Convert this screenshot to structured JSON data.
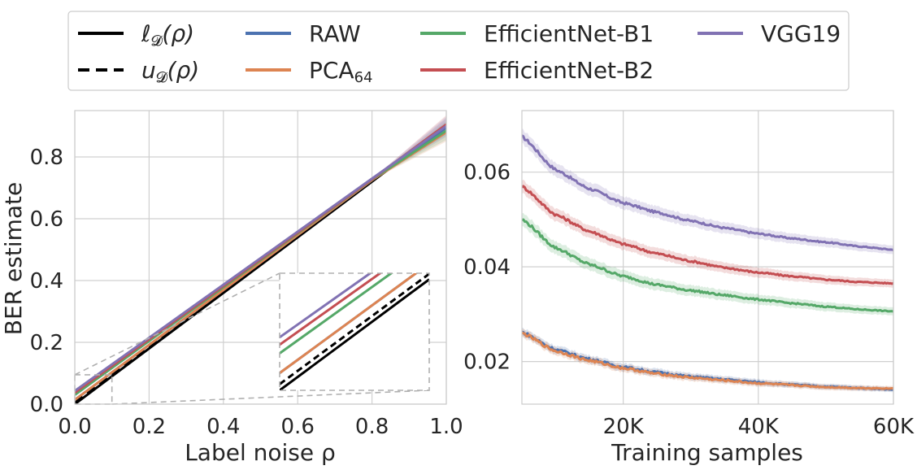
{
  "colors": {
    "raw": "#4c72b0",
    "pca": "#dd8452",
    "effb1": "#55a868",
    "effb2": "#c44e52",
    "vgg": "#8172b3",
    "lower": "#000000",
    "upper": "#000000",
    "grid": "#d0d0d0",
    "frame": "#cccccc",
    "inset_frame": "#b0b0b0"
  },
  "legend": {
    "placement": "top-center",
    "items": [
      {
        "label": "ℓ",
        "sub": "𝓓",
        "tail": "(ρ)",
        "style": "solid",
        "colorKey": "lower",
        "math": true
      },
      {
        "label": "RAW",
        "style": "solid",
        "colorKey": "raw"
      },
      {
        "label": "EfficientNet-B1",
        "style": "solid",
        "colorKey": "effb1"
      },
      {
        "label": "VGG19",
        "style": "solid",
        "colorKey": "vgg"
      },
      {
        "label": "u",
        "sub": "𝓓",
        "tail": "(ρ)",
        "style": "dashed",
        "colorKey": "upper",
        "math": true
      },
      {
        "label": "PCA",
        "sub": "64",
        "style": "solid",
        "colorKey": "pca"
      },
      {
        "label": "EfficientNet-B2",
        "style": "solid",
        "colorKey": "effb2"
      }
    ]
  },
  "chart_data": [
    {
      "type": "line",
      "title": "",
      "xlabel": "Label noise ρ",
      "ylabel": "BER estimate",
      "xlim": [
        0.0,
        1.0
      ],
      "ylim": [
        0.0,
        0.95
      ],
      "xticks": [
        0.0,
        0.2,
        0.4,
        0.6,
        0.8,
        1.0
      ],
      "xtick_labels": [
        "0.0",
        "0.2",
        "0.4",
        "0.6",
        "0.8",
        "1.0"
      ],
      "yticks": [
        0.0,
        0.2,
        0.4,
        0.6,
        0.8
      ],
      "ytick_labels": [
        "0.0",
        "0.2",
        "0.4",
        "0.6",
        "0.8"
      ],
      "grid": true,
      "series": [
        {
          "name": "lower bound ℓ𝓓(ρ)",
          "colorKey": "lower",
          "style": "solid",
          "x": [
            0.0,
            1.0
          ],
          "y": [
            0.0,
            0.9
          ]
        },
        {
          "name": "upper bound u𝓓(ρ)",
          "colorKey": "upper",
          "style": "dashed",
          "x": [
            0.0,
            1.0
          ],
          "y": [
            0.005,
            0.9
          ]
        },
        {
          "name": "RAW",
          "colorKey": "raw",
          "style": "solid",
          "x": [
            0.0,
            0.8,
            1.0
          ],
          "y": [
            0.014,
            0.725,
            0.895
          ]
        },
        {
          "name": "PCA64",
          "colorKey": "pca",
          "style": "solid",
          "x": [
            0.0,
            0.8,
            1.0
          ],
          "y": [
            0.014,
            0.725,
            0.88
          ]
        },
        {
          "name": "EfficientNet-B1",
          "colorKey": "effb1",
          "style": "solid",
          "x": [
            0.0,
            0.8,
            1.0
          ],
          "y": [
            0.03,
            0.727,
            0.885
          ]
        },
        {
          "name": "EfficientNet-B2",
          "colorKey": "effb2",
          "style": "solid",
          "x": [
            0.0,
            0.8,
            1.0
          ],
          "y": [
            0.037,
            0.728,
            0.905
          ]
        },
        {
          "name": "VGG19",
          "colorKey": "vgg",
          "style": "solid",
          "x": [
            0.0,
            0.8,
            1.0
          ],
          "y": [
            0.043,
            0.73,
            0.9
          ]
        }
      ],
      "inset": {
        "zoom_region_x": [
          0.0,
          0.1
        ],
        "zoom_region_y": [
          0.0,
          0.095
        ],
        "placement": "lower-right"
      }
    },
    {
      "type": "line",
      "title": "",
      "xlabel": "Training samples",
      "ylabel": "",
      "xlim": [
        5000,
        60000
      ],
      "ylim": [
        0.011,
        0.073
      ],
      "xticks": [
        20000,
        40000,
        60000
      ],
      "xtick_labels": [
        "20K",
        "40K",
        "60K"
      ],
      "yticks": [
        0.02,
        0.04,
        0.06
      ],
      "ytick_labels": [
        "0.02",
        "0.04",
        "0.06"
      ],
      "grid": true,
      "series": [
        {
          "name": "VGG19",
          "colorKey": "vgg",
          "x": [
            5000,
            10000,
            15000,
            20000,
            25000,
            30000,
            35000,
            40000,
            45000,
            50000,
            55000,
            60000
          ],
          "y": [
            0.0675,
            0.0605,
            0.0565,
            0.0535,
            0.0515,
            0.0497,
            0.0482,
            0.047,
            0.046,
            0.0452,
            0.0443,
            0.0436
          ],
          "band": 0.0015
        },
        {
          "name": "EfficientNet-B2",
          "colorKey": "effb2",
          "x": [
            5000,
            10000,
            15000,
            20000,
            25000,
            30000,
            35000,
            40000,
            45000,
            50000,
            55000,
            60000
          ],
          "y": [
            0.057,
            0.051,
            0.0475,
            0.0448,
            0.0428,
            0.0412,
            0.0398,
            0.0388,
            0.038,
            0.0373,
            0.0368,
            0.0365
          ],
          "band": 0.0014
        },
        {
          "name": "EfficientNet-B1",
          "colorKey": "effb1",
          "x": [
            5000,
            10000,
            15000,
            20000,
            25000,
            30000,
            35000,
            40000,
            45000,
            50000,
            55000,
            60000
          ],
          "y": [
            0.05,
            0.044,
            0.0405,
            0.038,
            0.0362,
            0.035,
            0.034,
            0.0331,
            0.0323,
            0.0316,
            0.031,
            0.0306
          ],
          "band": 0.0014
        },
        {
          "name": "RAW",
          "colorKey": "raw",
          "x": [
            5000,
            10000,
            15000,
            20000,
            25000,
            30000,
            35000,
            40000,
            45000,
            50000,
            55000,
            60000
          ],
          "y": [
            0.0262,
            0.0225,
            0.0205,
            0.0188,
            0.0177,
            0.0168,
            0.0162,
            0.0156,
            0.0151,
            0.0147,
            0.0144,
            0.0141
          ],
          "band": 0.0009
        },
        {
          "name": "PCA64",
          "colorKey": "pca",
          "x": [
            5000,
            10000,
            15000,
            20000,
            25000,
            30000,
            35000,
            40000,
            45000,
            50000,
            55000,
            60000
          ],
          "y": [
            0.026,
            0.0222,
            0.0202,
            0.0186,
            0.0174,
            0.0166,
            0.016,
            0.0154,
            0.015,
            0.0146,
            0.0144,
            0.0143
          ],
          "band": 0.0009
        }
      ]
    }
  ]
}
